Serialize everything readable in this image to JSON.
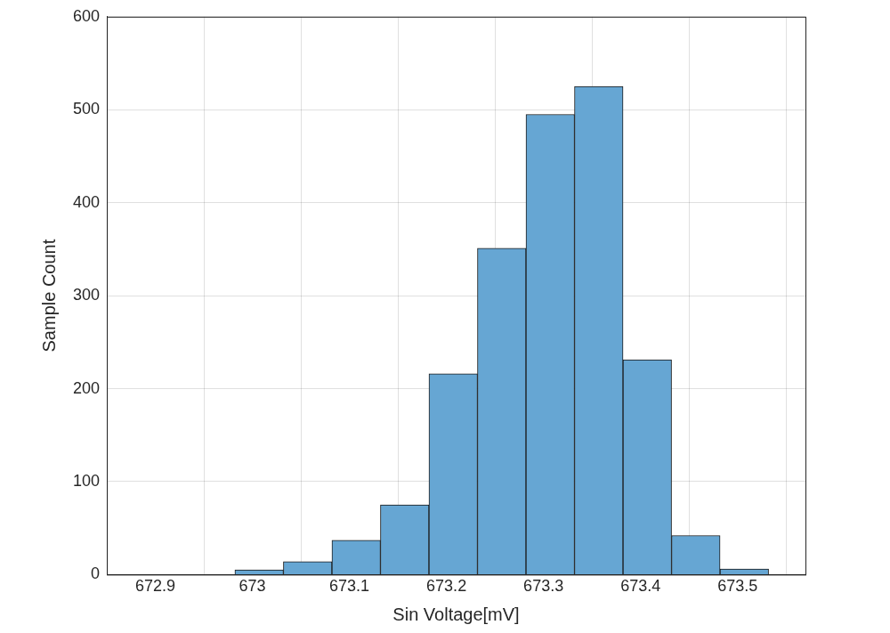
{
  "chart_data": {
    "type": "histogram",
    "x_label": "Sin Voltage[mV]",
    "y_label": "Sample Count",
    "bins": [
      672.982,
      673.032,
      673.082,
      673.132,
      673.182,
      673.232,
      673.282,
      673.332,
      673.382,
      673.432,
      673.482,
      673.532
    ],
    "counts": [
      5,
      14,
      37,
      75,
      216,
      351,
      495,
      525,
      231,
      42,
      6
    ],
    "color": "#66a6d3",
    "xlim": [
      672.85,
      673.57
    ],
    "xticks": [
      672.9,
      673,
      673.1,
      673.2,
      673.3,
      673.4,
      673.5
    ],
    "ylim": [
      0,
      600
    ],
    "yticks": [
      0,
      100,
      200,
      300,
      400,
      500,
      600
    ],
    "grid": true
  }
}
